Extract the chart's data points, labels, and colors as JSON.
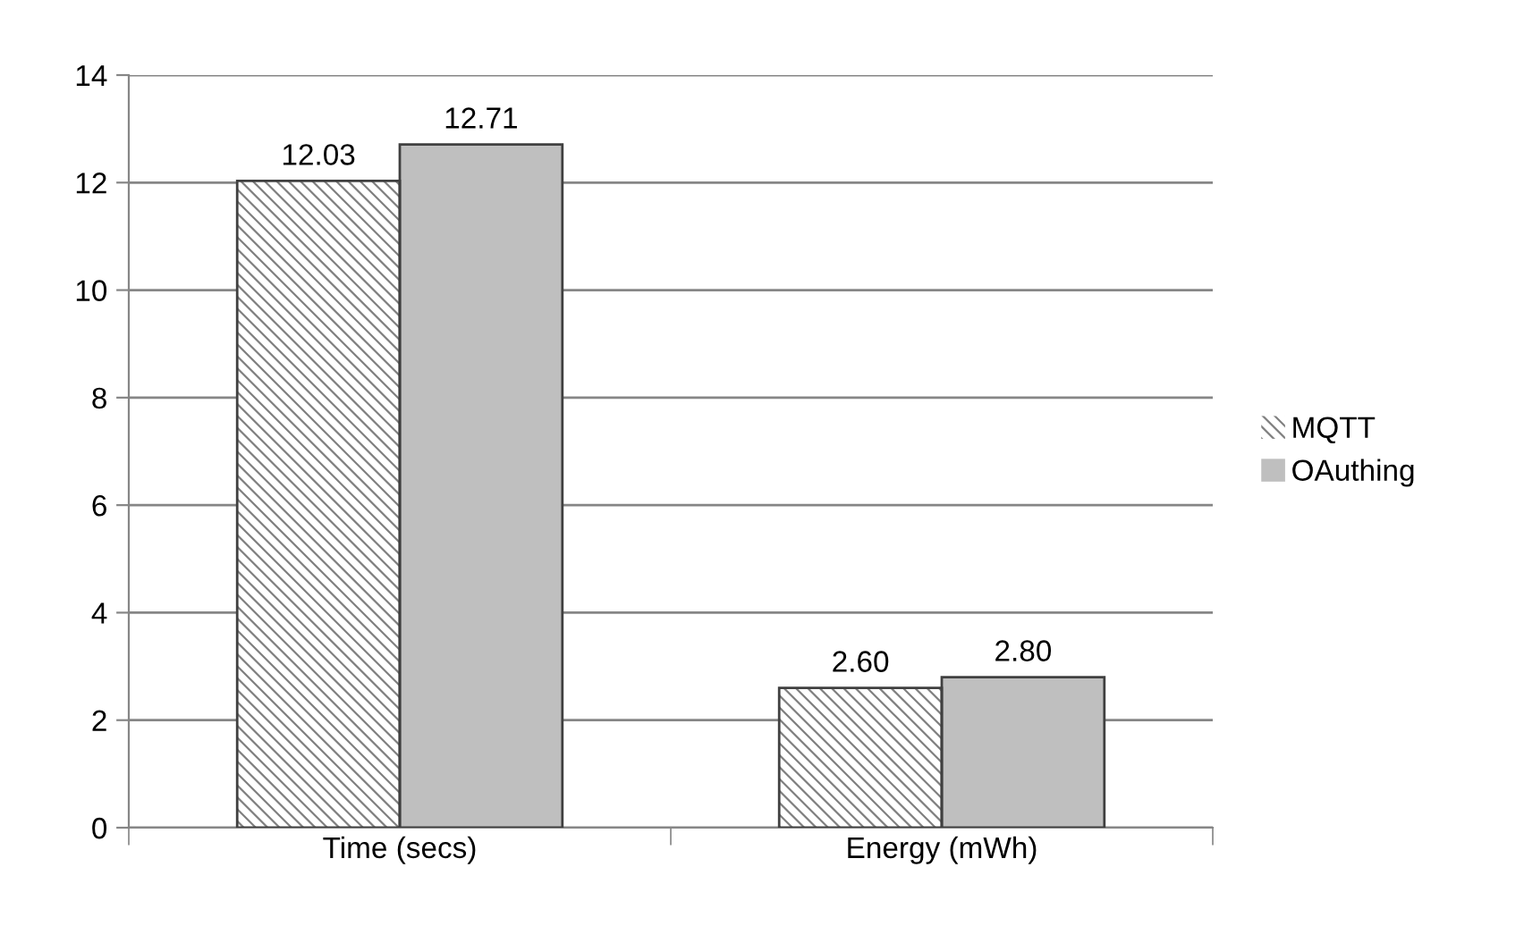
{
  "chart_data": {
    "type": "bar",
    "categories": [
      "Time (secs)",
      "Energy (mWh)"
    ],
    "series": [
      {
        "name": "MQTT",
        "color": "#ffffff",
        "values": [
          12.03,
          2.6
        ],
        "value_labels": [
          "12.03",
          "2.60"
        ]
      },
      {
        "name": "OAuthing",
        "color": "#bfbfbf",
        "values": [
          12.71,
          2.8
        ],
        "value_labels": [
          "12.71",
          "2.80"
        ]
      }
    ],
    "ylim": [
      0,
      14
    ],
    "yticks": [
      0,
      2,
      4,
      6,
      8,
      10,
      12,
      14
    ],
    "grid": "y",
    "legend": "right"
  }
}
